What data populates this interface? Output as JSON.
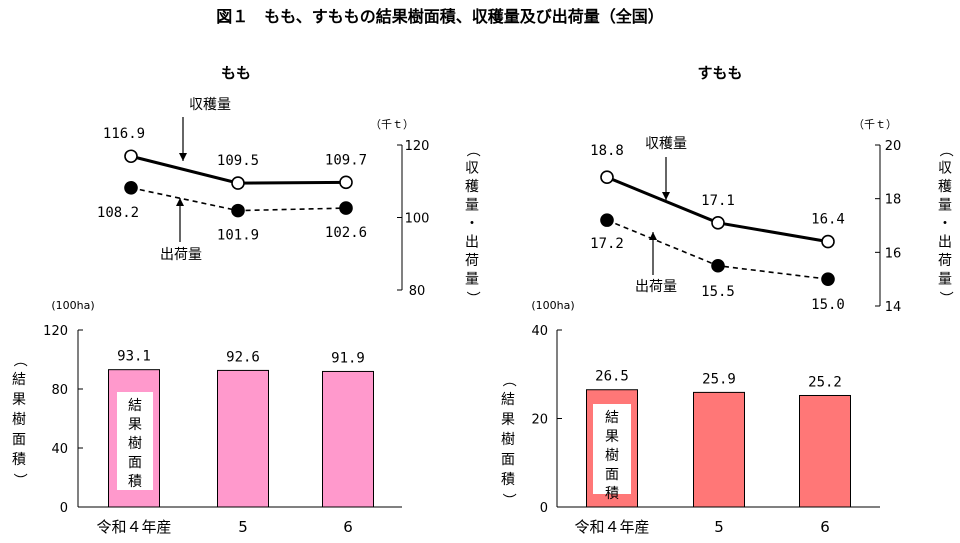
{
  "figure": {
    "title": "図１　もも、すももの結果樹面積、収穫量及び出荷量（全国）"
  },
  "chart_data": [
    {
      "panel": "もも",
      "line_chart": {
        "type": "line",
        "categories": [
          "令和４年産",
          "5",
          "6"
        ],
        "unit": "（千ｔ）",
        "ylabel": "（収穫量・出荷量）",
        "ylim": [
          80,
          120
        ],
        "yticks": [
          "80",
          "100",
          "120"
        ],
        "series": [
          {
            "name": "収穫量",
            "values": [
              116.9,
              109.5,
              109.7
            ],
            "labels": [
              "116.9",
              "109.5",
              "109.7"
            ],
            "style": "solid",
            "marker": "open"
          },
          {
            "name": "出荷量",
            "values": [
              108.2,
              101.9,
              102.6
            ],
            "labels": [
              "108.2",
              "101.9",
              "102.6"
            ],
            "style": "dashed",
            "marker": "filled"
          }
        ]
      },
      "bar_chart": {
        "type": "bar",
        "categories": [
          "令和４年産",
          "5",
          "6"
        ],
        "values": [
          93.1,
          92.6,
          91.9
        ],
        "labels": [
          "93.1",
          "92.6",
          "91.9"
        ],
        "unit": "(100ha)",
        "ylabel": "（結果樹面積）",
        "legend_label": "結果樹面積",
        "ylim": [
          0,
          120
        ],
        "yticks": [
          "0",
          "40",
          "80",
          "120"
        ],
        "color": "#ff99cc"
      }
    },
    {
      "panel": "すもも",
      "line_chart": {
        "type": "line",
        "categories": [
          "令和４年産",
          "5",
          "6"
        ],
        "unit": "（千ｔ）",
        "ylabel": "（収穫量・出荷量）",
        "ylim": [
          14,
          20
        ],
        "yticks": [
          "14",
          "16",
          "18",
          "20"
        ],
        "series": [
          {
            "name": "収穫量",
            "values": [
              18.8,
              17.1,
              16.4
            ],
            "labels": [
              "18.8",
              "17.1",
              "16.4"
            ],
            "style": "solid",
            "marker": "open"
          },
          {
            "name": "出荷量",
            "values": [
              17.2,
              15.5,
              15.0
            ],
            "labels": [
              "17.2",
              "15.5",
              "15.0"
            ],
            "style": "dashed",
            "marker": "filled"
          }
        ]
      },
      "bar_chart": {
        "type": "bar",
        "categories": [
          "令和４年産",
          "5",
          "6"
        ],
        "values": [
          26.5,
          25.9,
          25.2
        ],
        "labels": [
          "26.5",
          "25.9",
          "25.2"
        ],
        "unit": "(100ha)",
        "ylabel": "（結果樹面積）",
        "legend_label": "結果樹面積",
        "ylim": [
          0,
          40
        ],
        "yticks": [
          "0",
          "20",
          "40"
        ],
        "color": "#ff7777"
      }
    }
  ]
}
